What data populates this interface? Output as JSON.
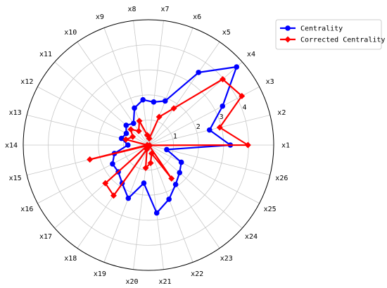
{
  "chart_data": {
    "type": "radar",
    "categories": [
      "x1",
      "x2",
      "x3",
      "x4",
      "x5",
      "x6",
      "x7",
      "x8",
      "x9",
      "x10",
      "x11",
      "x12",
      "x13",
      "x14",
      "x15",
      "x16",
      "x17",
      "x18",
      "x19",
      "x20",
      "x21",
      "x22",
      "x23",
      "x24",
      "x25",
      "x26"
    ],
    "radial_ticks": [
      "1",
      "2",
      "3",
      "4"
    ],
    "rmax": 5,
    "grid": true,
    "legend_position": "top-right",
    "series": [
      {
        "name": "Centrality",
        "color": "#0000ff",
        "marker": "circle",
        "values": [
          3.27,
          2.51,
          3.34,
          4.7,
          3.52,
          1.88,
          1.73,
          1.82,
          1.58,
          1.05,
          1.19,
          1.0,
          1.11,
          0.82,
          1.4,
          1.62,
          1.61,
          1.85,
          2.27,
          1.53,
          2.73,
          2.31,
          1.91,
          1.66,
          1.48,
          0.75
        ]
      },
      {
        "name": "Corrected Centrality",
        "color": "#ff0000",
        "marker": "diamond",
        "values": [
          3.97,
          2.93,
          4.21,
          3.96,
          1.78,
          1.2,
          0.26,
          0.4,
          1.03,
          0.68,
          0.94,
          0.71,
          0.93,
          0.05,
          2.41,
          0.05,
          2.3,
          2.45,
          0.18,
          0.92,
          0.72,
          0.36,
          1.62,
          0.05,
          0.05,
          0.05
        ]
      }
    ]
  }
}
